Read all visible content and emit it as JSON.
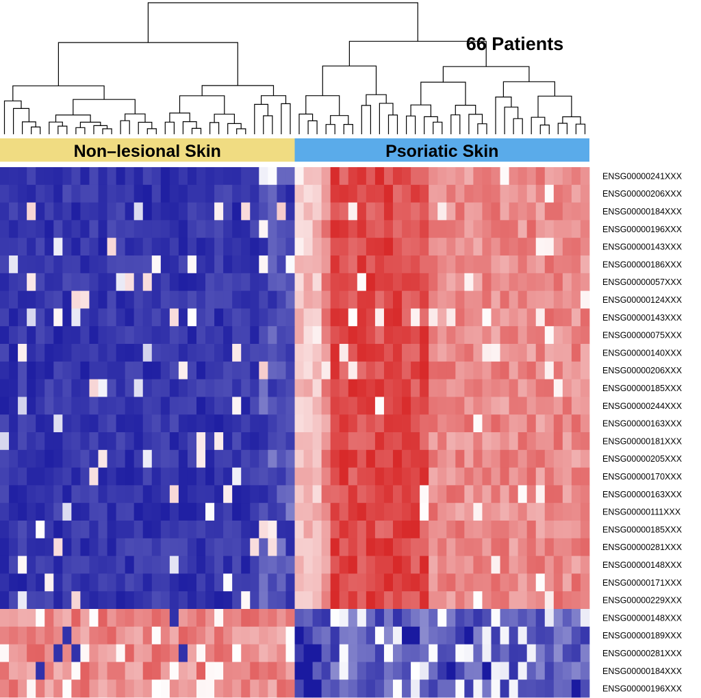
{
  "chart_data": {
    "type": "heatmap",
    "title": "66 Patients",
    "groups": [
      {
        "label": "Non–lesional Skin",
        "count": 33,
        "color": "#f0dc82"
      },
      {
        "label": "Psoriatic Skin",
        "count": 33,
        "color": "#5aabea"
      }
    ],
    "rows": [
      "ENSG00000241XXX",
      "ENSG00000206XXX",
      "ENSG00000184XXX",
      "ENSG00000196XXX",
      "ENSG00000143XXX",
      "ENSG00000186XXX",
      "ENSG00000057XXX",
      "ENSG00000124XXX",
      "ENSG00000143XXX",
      "ENSG00000075XXX",
      "ENSG00000140XXX",
      "ENSG00000206XXX",
      "ENSG00000185XXX",
      "ENSG00000244XXX",
      "ENSG00000163XXX",
      "ENSG00000181XXX",
      "ENSG00000205XXX",
      "ENSG00000170XXX",
      "ENSG00000163XXX",
      "ENSG00000111XXX",
      "ENSG00000185XXX",
      "ENSG00000281XXX",
      "ENSG00000148XXX",
      "ENSG00000171XXX",
      "ENSG00000229XXX",
      "ENSG00000148XXX",
      "ENSG00000189XXX",
      "ENSG00000281XXX",
      "ENSG00000184XXX",
      "ENSG00000196XXX"
    ],
    "up_in_psoriatic_rows": 25,
    "down_in_psoriatic_rows": 5,
    "columns": 66,
    "color_scale": {
      "low": "#1a1aa0",
      "mid": "#ffffff",
      "high": "#d82a2a"
    },
    "legend": "none"
  }
}
